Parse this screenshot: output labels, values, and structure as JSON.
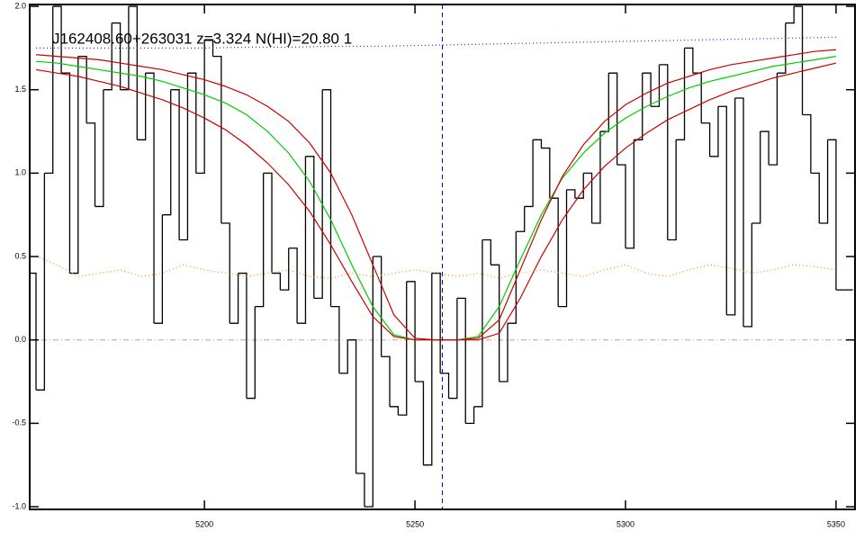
{
  "chart_data": {
    "type": "line",
    "title": "J162408.60+263031 z=3.324 N(HI)=20.80 1",
    "xlim": [
      5158.5,
      5354.5
    ],
    "ylim": [
      -1.016,
      2.011
    ],
    "xticks": [
      5200,
      5250,
      5300,
      5350
    ],
    "yticks": [
      {
        "value": -1,
        "label": "-1.0"
      },
      {
        "value": -0.5,
        "label": "-0.5"
      },
      {
        "value": 0,
        "label": "0.0"
      },
      {
        "value": 0.5,
        "label": "0.5"
      },
      {
        "value": 1,
        "label": "1.0"
      },
      {
        "value": 1.5,
        "label": "1.5"
      },
      {
        "value": 2,
        "label": "2.0"
      }
    ],
    "hline": 0,
    "vline": 5256.5,
    "series": [
      {
        "style": "step",
        "color": "#000000",
        "x": [
          5159,
          5161,
          5163,
          5165,
          5167,
          5169,
          5171,
          5173,
          5175,
          5177,
          5179,
          5181,
          5183,
          5185,
          5187,
          5189,
          5191,
          5193,
          5195,
          5197,
          5199,
          5201,
          5203,
          5205,
          5207,
          5209,
          5211,
          5213,
          5215,
          5217,
          5219,
          5221,
          5223,
          5225,
          5227,
          5229,
          5231,
          5233,
          5235,
          5237,
          5239,
          5241,
          5243,
          5245,
          5247,
          5249,
          5251,
          5253,
          5255,
          5257,
          5259,
          5261,
          5263,
          5265,
          5267,
          5269,
          5271,
          5273,
          5275,
          5277,
          5279,
          5281,
          5283,
          5285,
          5287,
          5289,
          5291,
          5293,
          5295,
          5297,
          5299,
          5301,
          5303,
          5305,
          5307,
          5309,
          5311,
          5313,
          5315,
          5317,
          5319,
          5321,
          5323,
          5325,
          5327,
          5329,
          5331,
          5333,
          5335,
          5337,
          5339,
          5341,
          5343,
          5345,
          5347,
          5349,
          5351,
          5353
        ],
        "values": [
          0.4,
          -0.3,
          1.0,
          2.0,
          1.6,
          0.4,
          1.7,
          1.3,
          0.8,
          1.5,
          1.9,
          1.5,
          2.0,
          1.2,
          1.6,
          0.1,
          0.75,
          1.5,
          0.6,
          1.6,
          1.0,
          1.8,
          1.7,
          0.7,
          0.1,
          0.4,
          -0.35,
          0.2,
          1.0,
          0.4,
          0.3,
          0.55,
          0.1,
          1.1,
          0.25,
          1.5,
          0.2,
          -0.2,
          0.0,
          -0.8,
          -1.0,
          0.5,
          -0.1,
          -0.4,
          -0.45,
          0.35,
          -0.25,
          -0.75,
          0.4,
          -0.2,
          -0.35,
          0.25,
          -0.5,
          -0.4,
          0.6,
          0.45,
          -0.25,
          0.1,
          0.65,
          0.8,
          1.2,
          1.15,
          0.85,
          0.2,
          0.9,
          0.85,
          1.0,
          0.7,
          1.25,
          1.6,
          1.05,
          0.55,
          1.2,
          1.6,
          1.4,
          1.65,
          0.6,
          1.2,
          1.75,
          1.6,
          1.3,
          1.1,
          1.4,
          0.15,
          1.45,
          0.08,
          0.7,
          1.25,
          1.05,
          1.6,
          1.9,
          2.0,
          1.35,
          1.0,
          0.7,
          1.2,
          0.3,
          0.3
        ]
      },
      {
        "style": "solid",
        "color": "#00cc00",
        "x": [
          5160,
          5165,
          5170,
          5175,
          5180,
          5185,
          5190,
          5195,
          5200,
          5205,
          5210,
          5215,
          5220,
          5225,
          5230,
          5235,
          5240,
          5245,
          5250,
          5255,
          5260,
          5265,
          5270,
          5275,
          5280,
          5285,
          5290,
          5295,
          5300,
          5305,
          5310,
          5315,
          5320,
          5325,
          5330,
          5335,
          5340,
          5345,
          5350
        ],
        "values": [
          1.67,
          1.66,
          1.64,
          1.62,
          1.6,
          1.58,
          1.55,
          1.51,
          1.47,
          1.42,
          1.35,
          1.25,
          1.12,
          0.95,
          0.72,
          0.45,
          0.2,
          0.03,
          0,
          0,
          0,
          0.02,
          0.2,
          0.48,
          0.75,
          0.97,
          1.12,
          1.24,
          1.33,
          1.4,
          1.46,
          1.51,
          1.55,
          1.58,
          1.61,
          1.64,
          1.66,
          1.68,
          1.7
        ]
      },
      {
        "style": "solid",
        "color": "#cc0000",
        "x": [
          5160,
          5165,
          5170,
          5175,
          5180,
          5185,
          5190,
          5195,
          5200,
          5205,
          5210,
          5215,
          5220,
          5225,
          5230,
          5235,
          5240,
          5245,
          5250,
          5255,
          5260,
          5265,
          5270,
          5275,
          5280,
          5285,
          5290,
          5295,
          5300,
          5305,
          5310,
          5315,
          5320,
          5325,
          5330,
          5335,
          5340,
          5345,
          5350
        ],
        "values": [
          1.71,
          1.7,
          1.69,
          1.68,
          1.66,
          1.64,
          1.62,
          1.59,
          1.56,
          1.52,
          1.47,
          1.4,
          1.31,
          1.18,
          1.0,
          0.75,
          0.45,
          0.15,
          0.01,
          0,
          0,
          0.01,
          0.12,
          0.42,
          0.72,
          0.98,
          1.17,
          1.31,
          1.41,
          1.48,
          1.54,
          1.58,
          1.62,
          1.65,
          1.67,
          1.69,
          1.71,
          1.73,
          1.74
        ]
      },
      {
        "style": "solid",
        "color": "#cc0000",
        "x": [
          5160,
          5165,
          5170,
          5175,
          5180,
          5185,
          5190,
          5195,
          5200,
          5205,
          5210,
          5215,
          5220,
          5225,
          5230,
          5235,
          5240,
          5245,
          5250,
          5255,
          5260,
          5265,
          5270,
          5275,
          5280,
          5285,
          5290,
          5295,
          5300,
          5305,
          5310,
          5315,
          5320,
          5325,
          5330,
          5335,
          5340,
          5345,
          5350
        ],
        "values": [
          1.62,
          1.6,
          1.58,
          1.55,
          1.52,
          1.48,
          1.44,
          1.39,
          1.33,
          1.26,
          1.17,
          1.06,
          0.93,
          0.77,
          0.57,
          0.35,
          0.14,
          0.02,
          0,
          0,
          0,
          0,
          0.04,
          0.25,
          0.5,
          0.72,
          0.9,
          1.04,
          1.15,
          1.24,
          1.32,
          1.38,
          1.44,
          1.49,
          1.53,
          1.57,
          1.6,
          1.63,
          1.66
        ]
      },
      {
        "style": "dotted",
        "color": "#ff8800",
        "x": [
          5160,
          5165,
          5170,
          5175,
          5180,
          5185,
          5190,
          5195,
          5200,
          5205,
          5210,
          5215,
          5220,
          5225,
          5230,
          5235,
          5240,
          5245,
          5250,
          5255,
          5260,
          5265,
          5270,
          5275,
          5280,
          5285,
          5290,
          5295,
          5300,
          5305,
          5310,
          5315,
          5320,
          5325,
          5330,
          5335,
          5340,
          5345,
          5350
        ],
        "values": [
          0.5,
          0.45,
          0.38,
          0.4,
          0.42,
          0.38,
          0.4,
          0.45,
          0.42,
          0.4,
          0.38,
          0.4,
          0.42,
          0.38,
          0.37,
          0.4,
          0.38,
          0.4,
          0.42,
          0.4,
          0.38,
          0.4,
          0.37,
          0.4,
          0.42,
          0.4,
          0.38,
          0.42,
          0.45,
          0.4,
          0.38,
          0.42,
          0.45,
          0.43,
          0.4,
          0.42,
          0.45,
          0.44,
          0.42
        ]
      },
      {
        "style": "dotted",
        "color": "#8800ff",
        "x": [
          5160,
          5170,
          5180,
          5190,
          5200,
          5210,
          5220,
          5230,
          5240,
          5250,
          5260,
          5270,
          5280,
          5290,
          5300,
          5310,
          5320,
          5330,
          5340,
          5350
        ],
        "values": [
          1.75,
          1.75,
          1.75,
          1.75,
          1.75,
          1.755,
          1.755,
          1.76,
          1.76,
          1.765,
          1.77,
          1.775,
          1.78,
          1.785,
          1.79,
          1.795,
          1.8,
          1.805,
          1.81,
          1.815
        ]
      }
    ]
  }
}
